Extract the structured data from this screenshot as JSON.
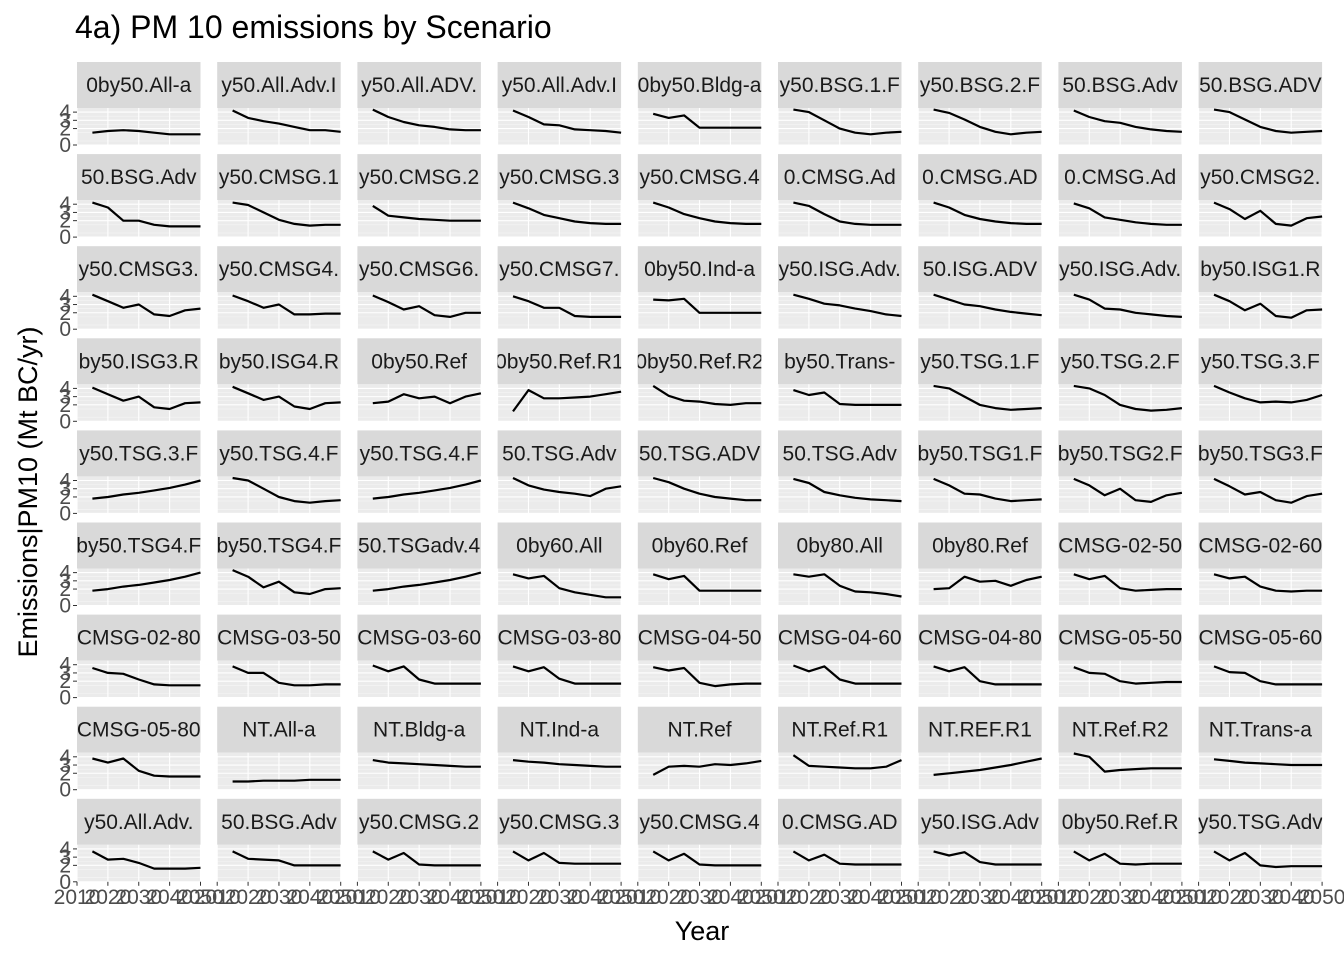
{
  "chart_data": {
    "type": "line",
    "title": "4a) PM 10 emissions by Scenario",
    "xlabel": "Year",
    "ylabel": "Emissions|PM10 (Mt BC/yr)",
    "x": [
      2015,
      2020,
      2025,
      2030,
      2035,
      2040,
      2045,
      2050
    ],
    "xlim": [
      2010,
      2050
    ],
    "x_tick_labels": [
      "2010",
      "2020",
      "2030",
      "2040",
      "2050"
    ],
    "ylim": [
      0,
      4.5
    ],
    "y_tick_labels": [
      "0",
      "2",
      "3",
      "4"
    ],
    "grid": true,
    "facet_layout": {
      "rows": 9,
      "cols": 9
    },
    "series_color": "#000000",
    "panel_background": "#ebebeb",
    "strip_background": "#d9d9d9",
    "facets": [
      {
        "label": "0by50.All-a",
        "values": [
          1.5,
          1.7,
          1.8,
          1.7,
          1.5,
          1.3,
          1.3,
          1.3
        ]
      },
      {
        "label": "y50.All.Adv.I",
        "values": [
          4.2,
          3.3,
          2.9,
          2.6,
          2.2,
          1.8,
          1.8,
          1.6
        ]
      },
      {
        "label": "y50.All.ADV.",
        "values": [
          4.3,
          3.4,
          2.8,
          2.4,
          2.2,
          1.9,
          1.8,
          1.8
        ]
      },
      {
        "label": "y50.All.Adv.I",
        "values": [
          4.2,
          3.4,
          2.5,
          2.4,
          1.9,
          1.8,
          1.7,
          1.5
        ]
      },
      {
        "label": "0by50.Bldg-a",
        "values": [
          3.8,
          3.3,
          3.6,
          2.1,
          2.1,
          2.1,
          2.1,
          2.1
        ]
      },
      {
        "label": "y50.BSG.1.F",
        "values": [
          4.3,
          4.0,
          3.0,
          2.0,
          1.5,
          1.3,
          1.5,
          1.6
        ]
      },
      {
        "label": "y50.BSG.2.F",
        "values": [
          4.3,
          3.9,
          3.1,
          2.2,
          1.6,
          1.3,
          1.5,
          1.6
        ]
      },
      {
        "label": "50.BSG.Adv",
        "values": [
          4.2,
          3.4,
          2.9,
          2.7,
          2.2,
          1.9,
          1.7,
          1.6
        ]
      },
      {
        "label": "50.BSG.ADV",
        "values": [
          4.3,
          4.0,
          3.1,
          2.2,
          1.7,
          1.5,
          1.6,
          1.7
        ]
      },
      {
        "label": "50.BSG.Adv",
        "values": [
          4.2,
          3.6,
          2.0,
          2.0,
          1.5,
          1.3,
          1.3,
          1.3
        ]
      },
      {
        "label": "y50.CMSG.1",
        "values": [
          4.2,
          3.9,
          3.0,
          2.1,
          1.6,
          1.4,
          1.5,
          1.5
        ]
      },
      {
        "label": "y50.CMSG.2",
        "values": [
          3.8,
          2.6,
          2.4,
          2.2,
          2.1,
          2.0,
          2.0,
          2.0
        ]
      },
      {
        "label": "y50.CMSG.3",
        "values": [
          4.2,
          3.5,
          2.7,
          2.3,
          1.9,
          1.7,
          1.6,
          1.6
        ]
      },
      {
        "label": "y50.CMSG.4",
        "values": [
          4.2,
          3.6,
          2.8,
          2.3,
          1.9,
          1.7,
          1.6,
          1.6
        ]
      },
      {
        "label": "0.CMSG.Ad",
        "values": [
          4.2,
          3.8,
          2.8,
          1.9,
          1.6,
          1.5,
          1.5,
          1.5
        ]
      },
      {
        "label": "0.CMSG.AD",
        "values": [
          4.2,
          3.6,
          2.7,
          2.2,
          1.9,
          1.7,
          1.6,
          1.6
        ]
      },
      {
        "label": "0.CMSG.Ad",
        "values": [
          4.1,
          3.5,
          2.4,
          2.1,
          1.8,
          1.6,
          1.5,
          1.5
        ]
      },
      {
        "label": "y50.CMSG2.",
        "values": [
          4.2,
          3.4,
          2.2,
          3.2,
          1.6,
          1.4,
          2.3,
          2.5
        ]
      },
      {
        "label": "y50.CMSG3.",
        "values": [
          4.2,
          3.4,
          2.6,
          3.0,
          1.8,
          1.6,
          2.3,
          2.5
        ]
      },
      {
        "label": "y50.CMSG4.",
        "values": [
          4.1,
          3.4,
          2.6,
          3.0,
          1.8,
          1.8,
          1.9,
          1.9
        ]
      },
      {
        "label": "y50.CMSG6.",
        "values": [
          4.1,
          3.3,
          2.4,
          2.8,
          1.7,
          1.5,
          2.0,
          2.0
        ]
      },
      {
        "label": "y50.CMSG7.",
        "values": [
          4.0,
          3.4,
          2.6,
          2.6,
          1.6,
          1.5,
          1.5,
          1.5
        ]
      },
      {
        "label": "0by50.Ind-a",
        "values": [
          3.6,
          3.5,
          3.7,
          2.0,
          2.0,
          2.0,
          2.0,
          2.0
        ]
      },
      {
        "label": "y50.ISG.Adv.",
        "values": [
          4.2,
          3.7,
          3.1,
          2.9,
          2.5,
          2.2,
          1.8,
          1.6
        ]
      },
      {
        "label": "50.ISG.ADV",
        "values": [
          4.2,
          3.6,
          3.0,
          2.8,
          2.4,
          2.1,
          1.9,
          1.7
        ]
      },
      {
        "label": "y50.ISG.Adv.",
        "values": [
          4.2,
          3.6,
          2.5,
          2.4,
          2.0,
          1.8,
          1.6,
          1.5
        ]
      },
      {
        "label": "by50.ISG1.R",
        "values": [
          4.2,
          3.4,
          2.3,
          3.1,
          1.6,
          1.4,
          2.3,
          2.4
        ]
      },
      {
        "label": "by50.ISG3.R",
        "values": [
          4.1,
          3.3,
          2.5,
          3.0,
          1.7,
          1.5,
          2.2,
          2.3
        ]
      },
      {
        "label": "by50.ISG4.R",
        "values": [
          4.2,
          3.4,
          2.6,
          3.0,
          1.8,
          1.5,
          2.2,
          2.3
        ]
      },
      {
        "label": "0by50.Ref",
        "values": [
          2.2,
          2.4,
          3.3,
          2.8,
          3.0,
          2.2,
          3.0,
          3.4
        ]
      },
      {
        "label": "0by50.Ref.R1",
        "values": [
          1.2,
          3.8,
          2.8,
          2.8,
          2.9,
          3.0,
          3.3,
          3.6
        ]
      },
      {
        "label": "0by50.Ref.R2",
        "values": [
          4.3,
          3.1,
          2.5,
          2.4,
          2.1,
          2.0,
          2.2,
          2.2
        ]
      },
      {
        "label": "by50.Trans-",
        "values": [
          3.8,
          3.2,
          3.5,
          2.1,
          2.0,
          2.0,
          2.0,
          2.0
        ]
      },
      {
        "label": "y50.TSG.1.F",
        "values": [
          4.3,
          4.0,
          3.0,
          2.0,
          1.6,
          1.4,
          1.5,
          1.6
        ]
      },
      {
        "label": "y50.TSG.2.F",
        "values": [
          4.3,
          4.0,
          3.2,
          2.0,
          1.5,
          1.3,
          1.4,
          1.6
        ]
      },
      {
        "label": "y50.TSG.3.F",
        "values": [
          4.3,
          3.5,
          2.8,
          2.3,
          2.4,
          2.3,
          2.6,
          3.2
        ]
      },
      {
        "label": "y50.TSG.3.F",
        "values": [
          1.8,
          2.0,
          2.3,
          2.5,
          2.8,
          3.1,
          3.5,
          4.0
        ]
      },
      {
        "label": "y50.TSG.4.F",
        "values": [
          4.3,
          4.0,
          3.0,
          2.0,
          1.5,
          1.3,
          1.5,
          1.6
        ]
      },
      {
        "label": "y50.TSG.4.F",
        "values": [
          1.8,
          2.0,
          2.3,
          2.5,
          2.8,
          3.1,
          3.5,
          4.0
        ]
      },
      {
        "label": "50.TSG.Adv",
        "values": [
          4.3,
          3.4,
          2.9,
          2.6,
          2.4,
          2.1,
          3.0,
          3.3
        ]
      },
      {
        "label": "50.TSG.ADV",
        "values": [
          4.3,
          3.8,
          3.0,
          2.4,
          2.0,
          1.8,
          1.6,
          1.6
        ]
      },
      {
        "label": "50.TSG.Adv",
        "values": [
          4.2,
          3.7,
          2.6,
          2.2,
          1.9,
          1.7,
          1.6,
          1.5
        ]
      },
      {
        "label": "by50.TSG1.F",
        "values": [
          4.2,
          3.4,
          2.4,
          2.3,
          1.8,
          1.5,
          1.6,
          1.7
        ]
      },
      {
        "label": "by50.TSG2.F",
        "values": [
          4.2,
          3.4,
          2.2,
          3.0,
          1.6,
          1.4,
          2.2,
          2.5
        ]
      },
      {
        "label": "by50.TSG3.F",
        "values": [
          4.2,
          3.3,
          2.3,
          2.6,
          1.6,
          1.3,
          2.1,
          2.4
        ]
      },
      {
        "label": "by50.TSG4.F",
        "values": [
          1.8,
          2.0,
          2.3,
          2.5,
          2.8,
          3.1,
          3.5,
          4.0
        ]
      },
      {
        "label": "by50.TSG4.F",
        "values": [
          4.3,
          3.5,
          2.2,
          2.9,
          1.6,
          1.4,
          2.0,
          2.1
        ]
      },
      {
        "label": "50.TSGadv.4",
        "values": [
          1.8,
          2.0,
          2.3,
          2.5,
          2.8,
          3.1,
          3.5,
          4.0
        ]
      },
      {
        "label": "0by60.All",
        "values": [
          3.8,
          3.3,
          3.6,
          2.1,
          1.6,
          1.3,
          1.0,
          1.0
        ]
      },
      {
        "label": "0by60.Ref",
        "values": [
          3.8,
          3.2,
          3.6,
          1.8,
          1.8,
          1.8,
          1.8,
          1.8
        ]
      },
      {
        "label": "0by80.All",
        "values": [
          3.8,
          3.5,
          3.8,
          2.4,
          1.7,
          1.6,
          1.4,
          1.1
        ]
      },
      {
        "label": "0by80.Ref",
        "values": [
          2.0,
          2.1,
          3.5,
          2.9,
          3.0,
          2.4,
          3.1,
          3.5
        ]
      },
      {
        "label": "CMSG-02-50",
        "values": [
          3.8,
          3.2,
          3.6,
          2.1,
          1.8,
          1.9,
          2.0,
          2.0
        ]
      },
      {
        "label": "CMSG-02-60",
        "values": [
          3.8,
          3.3,
          3.5,
          2.3,
          1.8,
          1.7,
          1.8,
          1.8
        ]
      },
      {
        "label": "CMSG-02-80",
        "values": [
          3.6,
          3.0,
          2.9,
          2.2,
          1.6,
          1.5,
          1.5,
          1.5
        ]
      },
      {
        "label": "CMSG-03-50",
        "values": [
          3.8,
          3.0,
          3.0,
          1.8,
          1.5,
          1.5,
          1.6,
          1.6
        ]
      },
      {
        "label": "CMSG-03-60",
        "values": [
          3.9,
          3.2,
          3.8,
          2.2,
          1.7,
          1.7,
          1.7,
          1.7
        ]
      },
      {
        "label": "CMSG-03-80",
        "values": [
          3.8,
          3.2,
          3.7,
          2.3,
          1.7,
          1.7,
          1.7,
          1.7
        ]
      },
      {
        "label": "CMSG-04-50",
        "values": [
          3.7,
          3.3,
          3.6,
          1.8,
          1.4,
          1.6,
          1.7,
          1.7
        ]
      },
      {
        "label": "CMSG-04-60",
        "values": [
          3.9,
          3.2,
          3.8,
          2.2,
          1.7,
          1.7,
          1.7,
          1.7
        ]
      },
      {
        "label": "CMSG-04-80",
        "values": [
          3.8,
          3.2,
          3.7,
          2.0,
          1.6,
          1.6,
          1.6,
          1.6
        ]
      },
      {
        "label": "CMSG-05-50",
        "values": [
          3.7,
          3.0,
          2.9,
          2.0,
          1.7,
          1.8,
          1.9,
          1.9
        ]
      },
      {
        "label": "CMSG-05-60",
        "values": [
          3.8,
          3.1,
          3.0,
          2.0,
          1.6,
          1.6,
          1.6,
          1.6
        ]
      },
      {
        "label": "CMSG-05-80",
        "values": [
          3.8,
          3.3,
          3.8,
          2.3,
          1.7,
          1.6,
          1.6,
          1.6
        ]
      },
      {
        "label": "NT.All-a",
        "values": [
          1.0,
          1.0,
          1.1,
          1.1,
          1.1,
          1.2,
          1.2,
          1.2
        ]
      },
      {
        "label": "NT.Bldg-a",
        "values": [
          3.6,
          3.3,
          3.2,
          3.1,
          3.0,
          2.9,
          2.8,
          2.8
        ]
      },
      {
        "label": "NT.Ind-a",
        "values": [
          3.6,
          3.4,
          3.3,
          3.1,
          3.0,
          2.9,
          2.8,
          2.8
        ]
      },
      {
        "label": "NT.Ref",
        "values": [
          1.8,
          2.8,
          2.9,
          2.8,
          3.1,
          3.0,
          3.2,
          3.5
        ]
      },
      {
        "label": "NT.Ref.R1",
        "values": [
          4.2,
          2.9,
          2.8,
          2.7,
          2.6,
          2.6,
          2.8,
          3.6
        ]
      },
      {
        "label": "NT.REF.R1",
        "values": [
          1.8,
          2.0,
          2.2,
          2.4,
          2.7,
          3.0,
          3.4,
          3.8
        ]
      },
      {
        "label": "NT.Ref.R2",
        "values": [
          4.4,
          4.0,
          2.2,
          2.4,
          2.5,
          2.6,
          2.6,
          2.6
        ]
      },
      {
        "label": "NT.Trans-a",
        "values": [
          3.7,
          3.5,
          3.3,
          3.2,
          3.1,
          3.0,
          3.0,
          3.0
        ]
      },
      {
        "label": "y50.All.Adv.",
        "values": [
          3.7,
          2.7,
          2.8,
          2.3,
          1.6,
          1.6,
          1.6,
          1.7
        ]
      },
      {
        "label": "50.BSG.Adv",
        "values": [
          3.7,
          2.8,
          2.7,
          2.6,
          2.0,
          2.0,
          2.0,
          2.0
        ]
      },
      {
        "label": "y50.CMSG.2",
        "values": [
          3.7,
          2.7,
          3.5,
          2.1,
          2.0,
          2.0,
          2.0,
          2.0
        ]
      },
      {
        "label": "y50.CMSG.3",
        "values": [
          3.7,
          2.6,
          3.5,
          2.3,
          2.2,
          2.2,
          2.2,
          2.2
        ]
      },
      {
        "label": "y50.CMSG.4",
        "values": [
          3.7,
          2.6,
          3.4,
          2.1,
          2.0,
          2.0,
          2.0,
          2.0
        ]
      },
      {
        "label": "0.CMSG.AD",
        "values": [
          3.7,
          2.6,
          3.3,
          2.2,
          2.1,
          2.1,
          2.1,
          2.1
        ]
      },
      {
        "label": "y50.ISG.Adv",
        "values": [
          3.7,
          3.2,
          3.6,
          2.4,
          2.1,
          2.1,
          2.1,
          2.1
        ]
      },
      {
        "label": "0by50.Ref.R",
        "values": [
          3.7,
          2.6,
          3.4,
          2.2,
          2.1,
          2.2,
          2.2,
          2.2
        ]
      },
      {
        "label": "y50.TSG.Adv",
        "values": [
          3.7,
          2.6,
          3.5,
          2.0,
          1.8,
          1.9,
          1.9,
          1.9
        ]
      }
    ]
  }
}
